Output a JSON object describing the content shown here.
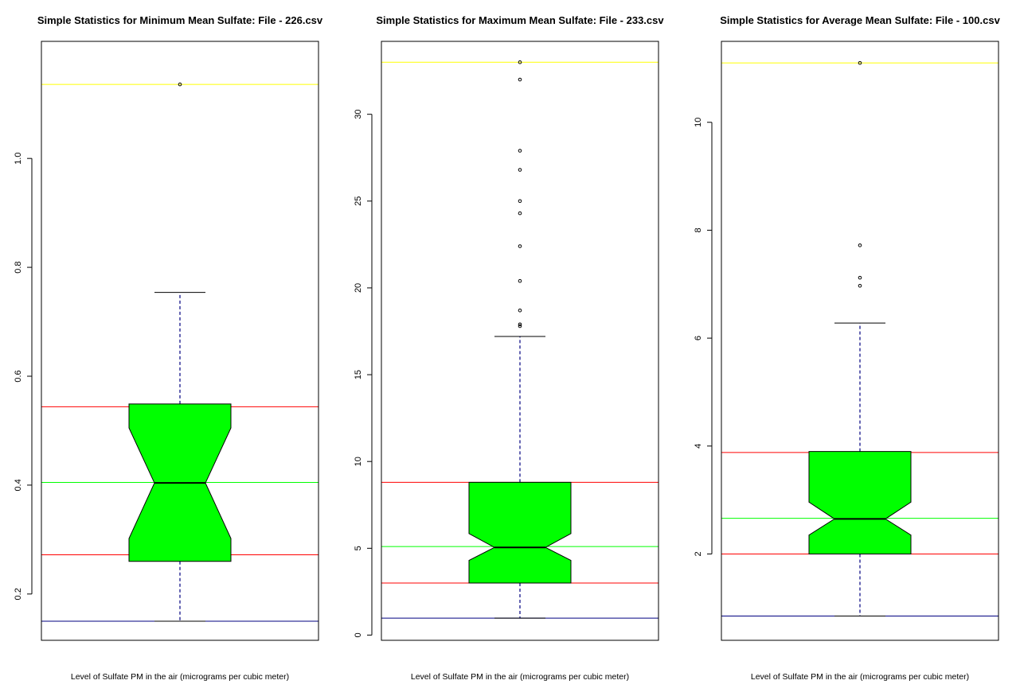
{
  "chart_data": [
    {
      "type": "boxplot",
      "title": "Simple Statistics for Minimum Mean Sulfate: File - 226.csv",
      "xlabel": "Level of Sulfate PM in the air (micrograms per cubic meter)",
      "ylabel": "",
      "ylim": [
        0.115,
        1.215
      ],
      "yticks": [
        0.2,
        0.4,
        0.6,
        0.8,
        1.0
      ],
      "ytick_labels": [
        "0.2",
        "0.4",
        "0.6",
        "0.8",
        "1.0"
      ],
      "notched": true,
      "box": {
        "whisker_low": 0.15,
        "q1": 0.26,
        "median": 0.404,
        "q3": 0.549,
        "whisker_high": 0.754,
        "notch_low": 0.302,
        "notch_high": 0.505
      },
      "outliers": [
        1.136
      ],
      "reference_lines": [
        {
          "name": "max",
          "value": 1.136,
          "color": "#ffff00"
        },
        {
          "name": "q3",
          "value": 0.544,
          "color": "#ff0000"
        },
        {
          "name": "mean",
          "value": 0.405,
          "color": "#00ff00"
        },
        {
          "name": "q1",
          "value": 0.272,
          "color": "#ff0000"
        },
        {
          "name": "min",
          "value": 0.15,
          "color": "#000080"
        }
      ],
      "box_fill": "#00ff00",
      "grid": false
    },
    {
      "type": "boxplot",
      "title": "Simple Statistics for Maximum Mean Sulfate: File - 233.csv",
      "xlabel": "Level of Sulfate PM in the air (micrograms per cubic meter)",
      "ylabel": "",
      "ylim": [
        -0.3,
        34.2
      ],
      "yticks": [
        0,
        5,
        10,
        15,
        20,
        25,
        30
      ],
      "ytick_labels": [
        "0",
        "5",
        "10",
        "15",
        "20",
        "25",
        "30"
      ],
      "notched": true,
      "box": {
        "whisker_low": 0.98,
        "q1": 3.0,
        "median": 5.05,
        "q3": 8.8,
        "whisker_high": 17.2,
        "notch_low": 4.3,
        "notch_high": 5.85
      },
      "outliers": [
        17.8,
        17.9,
        18.7,
        20.4,
        22.4,
        24.3,
        25.0,
        26.8,
        27.9,
        32.0,
        33.0
      ],
      "reference_lines": [
        {
          "name": "max",
          "value": 33.0,
          "color": "#ffff00"
        },
        {
          "name": "q3",
          "value": 8.8,
          "color": "#ff0000"
        },
        {
          "name": "mean",
          "value": 5.1,
          "color": "#00ff00"
        },
        {
          "name": "q1",
          "value": 3.0,
          "color": "#ff0000"
        },
        {
          "name": "min",
          "value": 0.98,
          "color": "#000080"
        }
      ],
      "box_fill": "#00ff00",
      "grid": false
    },
    {
      "type": "boxplot",
      "title": "Simple Statistics for Average Mean Sulfate: File - 100.csv",
      "xlabel": "Level of Sulfate PM in the air (micrograms per cubic meter)",
      "ylabel": "",
      "ylim": [
        0.4,
        11.5
      ],
      "yticks": [
        2,
        4,
        6,
        8,
        10
      ],
      "ytick_labels": [
        "2",
        "4",
        "6",
        "8",
        "10"
      ],
      "notched": true,
      "box": {
        "whisker_low": 0.85,
        "q1": 2.0,
        "median": 2.65,
        "q3": 3.9,
        "whisker_high": 6.28,
        "notch_low": 2.35,
        "notch_high": 2.96
      },
      "outliers": [
        6.97,
        7.12,
        7.72,
        11.1
      ],
      "reference_lines": [
        {
          "name": "max",
          "value": 11.1,
          "color": "#ffff00"
        },
        {
          "name": "q3",
          "value": 3.88,
          "color": "#ff0000"
        },
        {
          "name": "mean",
          "value": 2.66,
          "color": "#00ff00"
        },
        {
          "name": "q1",
          "value": 2.0,
          "color": "#ff0000"
        },
        {
          "name": "min",
          "value": 0.85,
          "color": "#000080"
        }
      ],
      "box_fill": "#00ff00",
      "grid": false
    }
  ]
}
